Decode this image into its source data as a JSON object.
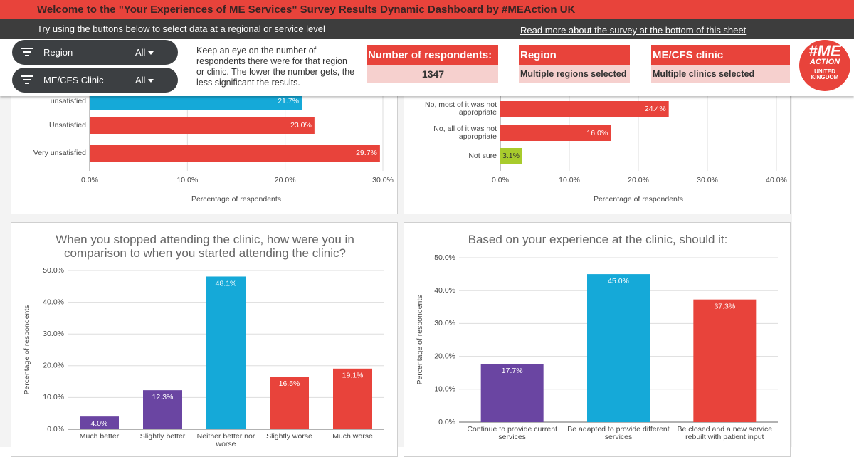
{
  "header": {
    "title": "Welcome to the \"Your Experiences of ME Services\" Survey Results Dynamic Dashboard by #MEAction UK",
    "subtitle": "Try using the buttons below to select data at a regional or service level",
    "link": "Read more about the survey at the bottom of this sheet"
  },
  "filters": [
    {
      "label": "Region",
      "value": "All"
    },
    {
      "label": "ME/CFS Clinic",
      "value": "All"
    }
  ],
  "note": "Keep an eye on the number of respondents there were for that region or clinic. The lower the number gets, the less significant the results.",
  "cards": [
    {
      "title": "Number of respondents:",
      "value": 1347
    },
    {
      "title": "Region",
      "value": "Multiple regions selected"
    },
    {
      "title": "ME/CFS clinic",
      "value": "Multiple clinics selected"
    }
  ],
  "logo": {
    "lines": [
      "#ME",
      "ACTION",
      "UNITED",
      "KINGDOM"
    ]
  },
  "chart_data": [
    {
      "type": "hbar",
      "categories": [
        "unsatisfied",
        "Unsatisfied",
        "Very unsatisfied"
      ],
      "values": [
        21.7,
        23.0,
        29.7
      ],
      "value_labels": [
        "21.7%",
        "23.0%",
        "29.7%"
      ],
      "colors": [
        "#15a9d8",
        "#e8433b",
        "#e8433b"
      ],
      "xlabel": "Percentage of respondents",
      "xlim": [
        0,
        30
      ],
      "xticks": [
        {
          "value": 0,
          "label": "0.0%"
        },
        {
          "value": 10,
          "label": "10.0%"
        },
        {
          "value": 20,
          "label": "20.0%"
        },
        {
          "value": 30,
          "label": "30.0%"
        }
      ],
      "grid": true
    },
    {
      "type": "hbar",
      "categories": [
        "No, most of it was not appropriate",
        "No, all of it was not appropriate",
        "Not sure"
      ],
      "values": [
        24.4,
        16.0,
        3.1
      ],
      "value_labels": [
        "24.4%",
        "16.0%",
        "3.1%"
      ],
      "colors": [
        "#e8433b",
        "#e8433b",
        "#a8cb2c"
      ],
      "xlabel": "Percentage of respondents",
      "xlim": [
        0,
        40
      ],
      "xticks": [
        {
          "value": 0,
          "label": "0.0%"
        },
        {
          "value": 10,
          "label": "10.0%"
        },
        {
          "value": 20,
          "label": "20.0%"
        },
        {
          "value": 30,
          "label": "30.0%"
        },
        {
          "value": 40,
          "label": "40.0%"
        }
      ],
      "grid": true
    },
    {
      "type": "bar",
      "title": "When you stopped attending the clinic, how were you in comparison to when you started attending the clinic?",
      "categories": [
        "Much better",
        "Slightly better",
        "Neither better nor worse",
        "Slightly worse",
        "Much worse"
      ],
      "values": [
        4.0,
        12.3,
        48.1,
        16.5,
        19.1
      ],
      "value_labels": [
        "4.0%",
        "12.3%",
        "48.1%",
        "16.5%",
        "19.1%"
      ],
      "colors": [
        "#6a45a2",
        "#6a45a2",
        "#15a9d8",
        "#e8433b",
        "#e8433b"
      ],
      "ylabel": "Percentage of respondents",
      "ylim": [
        0,
        50
      ],
      "yticks": [
        {
          "value": 0,
          "label": "0.0%"
        },
        {
          "value": 10,
          "label": "10.0%"
        },
        {
          "value": 20,
          "label": "20.0%"
        },
        {
          "value": 30,
          "label": "30.0%"
        },
        {
          "value": 40,
          "label": "40.0%"
        },
        {
          "value": 50,
          "label": "50.0%"
        }
      ],
      "grid": true
    },
    {
      "type": "bar",
      "title": "Based on your experience at the clinic, should it:",
      "categories": [
        "Continue to provide current services",
        "Be adapted to provide different services",
        "Be closed and a new service rebuilt with patient input"
      ],
      "values": [
        17.7,
        45.0,
        37.3
      ],
      "value_labels": [
        "17.7%",
        "45.0%",
        "37.3%"
      ],
      "colors": [
        "#6a45a2",
        "#15a9d8",
        "#e8433b"
      ],
      "ylabel": "Percentage of respondents",
      "ylim": [
        0,
        50
      ],
      "yticks": [
        {
          "value": 0,
          "label": "0.0%"
        },
        {
          "value": 10,
          "label": "10.0%"
        },
        {
          "value": 20,
          "label": "20.0%"
        },
        {
          "value": 30,
          "label": "30.0%"
        },
        {
          "value": 40,
          "label": "40.0%"
        },
        {
          "value": 50,
          "label": "50.0%"
        }
      ],
      "grid": true
    }
  ]
}
